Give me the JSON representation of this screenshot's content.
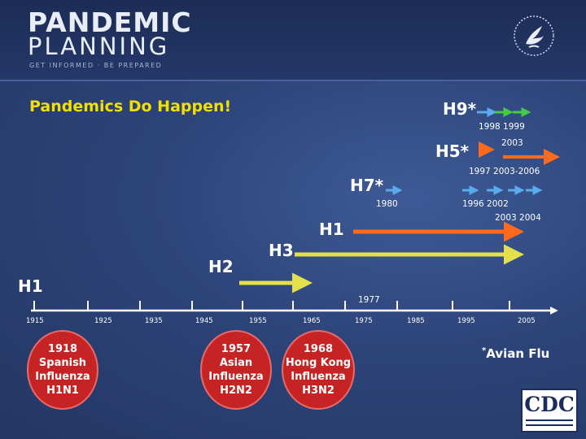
{
  "header": {
    "logo_line1": "PANDEMIC",
    "logo_line2": "PLANNING",
    "tagline": "GET INFORMED · BE PREPARED",
    "hhs_icon": "hhs-eagle-icon"
  },
  "title": "Pandemics Do Happen!",
  "labels": {
    "h9": "H9*",
    "h5": "H5*",
    "h7": "H7*",
    "h1_top": "H1",
    "h3": "H3",
    "h2": "H2",
    "h1_left": "H1"
  },
  "years": {
    "y1998_1999": "1998 1999",
    "y2003_a": "2003",
    "y1997_range": "1997  2003-2006",
    "y1980": "1980",
    "y1996_2002": "1996  2002",
    "y2003_2004": "2003  2004",
    "y1977": "1977"
  },
  "axis_ticks": [
    "1915",
    "1925",
    "1935",
    "1945",
    "1955",
    "1965",
    "1975",
    "1985",
    "1995",
    "2005"
  ],
  "ovals": [
    {
      "text": "1918\nSpanish\nInfluenza\nH1N1"
    },
    {
      "text": "1957\nAsian\nInfluenza\nH2N2"
    },
    {
      "text": "1968\nHong Kong\nInfluenza\nH3N2"
    }
  ],
  "footnote": "Avian Flu",
  "footnote_mark": "*",
  "cdc_logo": "CDC",
  "colors": {
    "title": "#f2e100",
    "yellow_arrow": "#e4e04a",
    "orange_arrow": "#ff6a1c",
    "green_arrow": "#44cc44",
    "blue_arrow": "#5aaaf0",
    "oval": "#c62424",
    "background": "#2d4479"
  }
}
